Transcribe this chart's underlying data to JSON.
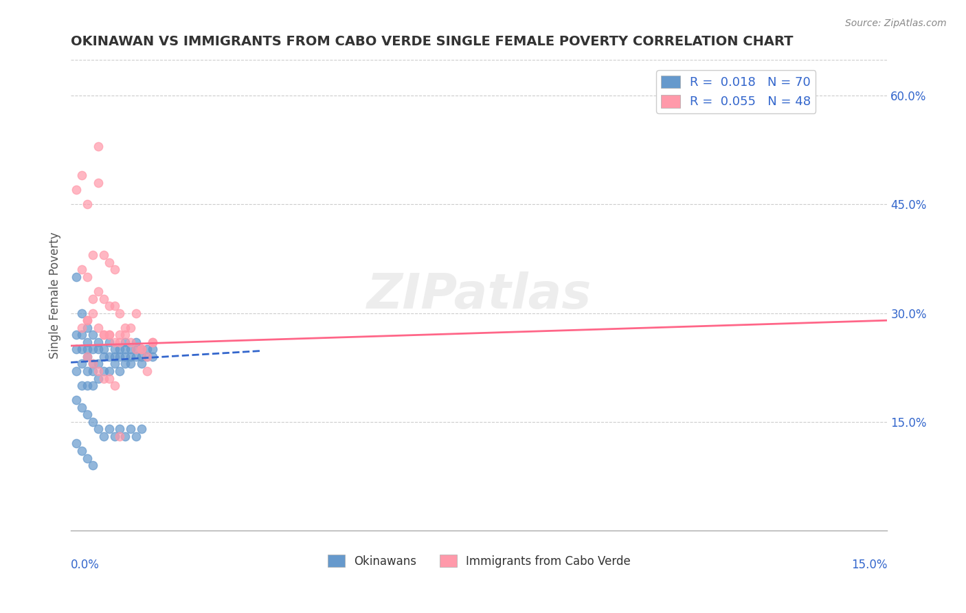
{
  "title": "OKINAWAN VS IMMIGRANTS FROM CABO VERDE SINGLE FEMALE POVERTY CORRELATION CHART",
  "source": "Source: ZipAtlas.com",
  "ylabel": "Single Female Poverty",
  "right_yticks": [
    0.15,
    0.3,
    0.45,
    0.6
  ],
  "right_yticklabels": [
    "15.0%",
    "30.0%",
    "45.0%",
    "60.0%"
  ],
  "legend1_label": "R =  0.018   N = 70",
  "legend2_label": "R =  0.055   N = 48",
  "legend_bottom_label1": "Okinawans",
  "legend_bottom_label2": "Immigrants from Cabo Verde",
  "blue_color": "#6699CC",
  "pink_color": "#FF99AA",
  "blue_line_color": "#3366CC",
  "pink_line_color": "#FF6688",
  "legend_text_color": "#3366CC",
  "title_color": "#333333",
  "background_color": "#FFFFFF",
  "xlim": [
    0.0,
    0.15
  ],
  "ylim": [
    0.0,
    0.65
  ],
  "blue_scatter_x": [
    0.001,
    0.001,
    0.001,
    0.001,
    0.002,
    0.002,
    0.002,
    0.002,
    0.002,
    0.003,
    0.003,
    0.003,
    0.003,
    0.003,
    0.003,
    0.004,
    0.004,
    0.004,
    0.004,
    0.004,
    0.005,
    0.005,
    0.005,
    0.005,
    0.006,
    0.006,
    0.006,
    0.007,
    0.007,
    0.007,
    0.008,
    0.008,
    0.008,
    0.009,
    0.009,
    0.009,
    0.01,
    0.01,
    0.01,
    0.01,
    0.011,
    0.011,
    0.011,
    0.012,
    0.012,
    0.012,
    0.013,
    0.013,
    0.013,
    0.014,
    0.014,
    0.015,
    0.015,
    0.001,
    0.001,
    0.002,
    0.002,
    0.003,
    0.003,
    0.004,
    0.004,
    0.005,
    0.006,
    0.007,
    0.008,
    0.009,
    0.01,
    0.011,
    0.012,
    0.013
  ],
  "blue_scatter_y": [
    0.35,
    0.27,
    0.25,
    0.22,
    0.3,
    0.27,
    0.25,
    0.23,
    0.2,
    0.28,
    0.26,
    0.25,
    0.24,
    0.22,
    0.2,
    0.27,
    0.25,
    0.23,
    0.22,
    0.2,
    0.26,
    0.25,
    0.23,
    0.21,
    0.25,
    0.24,
    0.22,
    0.26,
    0.24,
    0.22,
    0.25,
    0.24,
    0.23,
    0.25,
    0.24,
    0.22,
    0.26,
    0.25,
    0.24,
    0.23,
    0.25,
    0.24,
    0.23,
    0.26,
    0.25,
    0.24,
    0.25,
    0.24,
    0.23,
    0.25,
    0.24,
    0.25,
    0.24,
    0.18,
    0.12,
    0.17,
    0.11,
    0.16,
    0.1,
    0.15,
    0.09,
    0.14,
    0.13,
    0.14,
    0.13,
    0.14,
    0.13,
    0.14,
    0.13,
    0.14
  ],
  "pink_scatter_x": [
    0.001,
    0.002,
    0.002,
    0.003,
    0.003,
    0.003,
    0.004,
    0.004,
    0.005,
    0.005,
    0.005,
    0.006,
    0.006,
    0.006,
    0.007,
    0.007,
    0.007,
    0.008,
    0.008,
    0.009,
    0.009,
    0.01,
    0.011,
    0.012,
    0.013,
    0.014,
    0.015,
    0.002,
    0.003,
    0.004,
    0.005,
    0.006,
    0.007,
    0.008,
    0.009,
    0.01,
    0.011,
    0.012,
    0.013,
    0.014,
    0.015,
    0.003,
    0.004,
    0.005,
    0.006,
    0.007,
    0.008,
    0.009
  ],
  "pink_scatter_y": [
    0.47,
    0.49,
    0.36,
    0.45,
    0.35,
    0.29,
    0.38,
    0.32,
    0.53,
    0.48,
    0.33,
    0.38,
    0.32,
    0.27,
    0.37,
    0.31,
    0.27,
    0.36,
    0.31,
    0.3,
    0.27,
    0.28,
    0.28,
    0.3,
    0.25,
    0.22,
    0.26,
    0.28,
    0.29,
    0.3,
    0.28,
    0.27,
    0.27,
    0.26,
    0.26,
    0.27,
    0.26,
    0.25,
    0.25,
    0.24,
    0.26,
    0.24,
    0.23,
    0.22,
    0.21,
    0.21,
    0.2,
    0.13
  ],
  "blue_trend_x": [
    0.0,
    0.035
  ],
  "blue_trend_y": [
    0.232,
    0.248
  ],
  "pink_trend_x": [
    0.0,
    0.15
  ],
  "pink_trend_y": [
    0.255,
    0.29
  ]
}
